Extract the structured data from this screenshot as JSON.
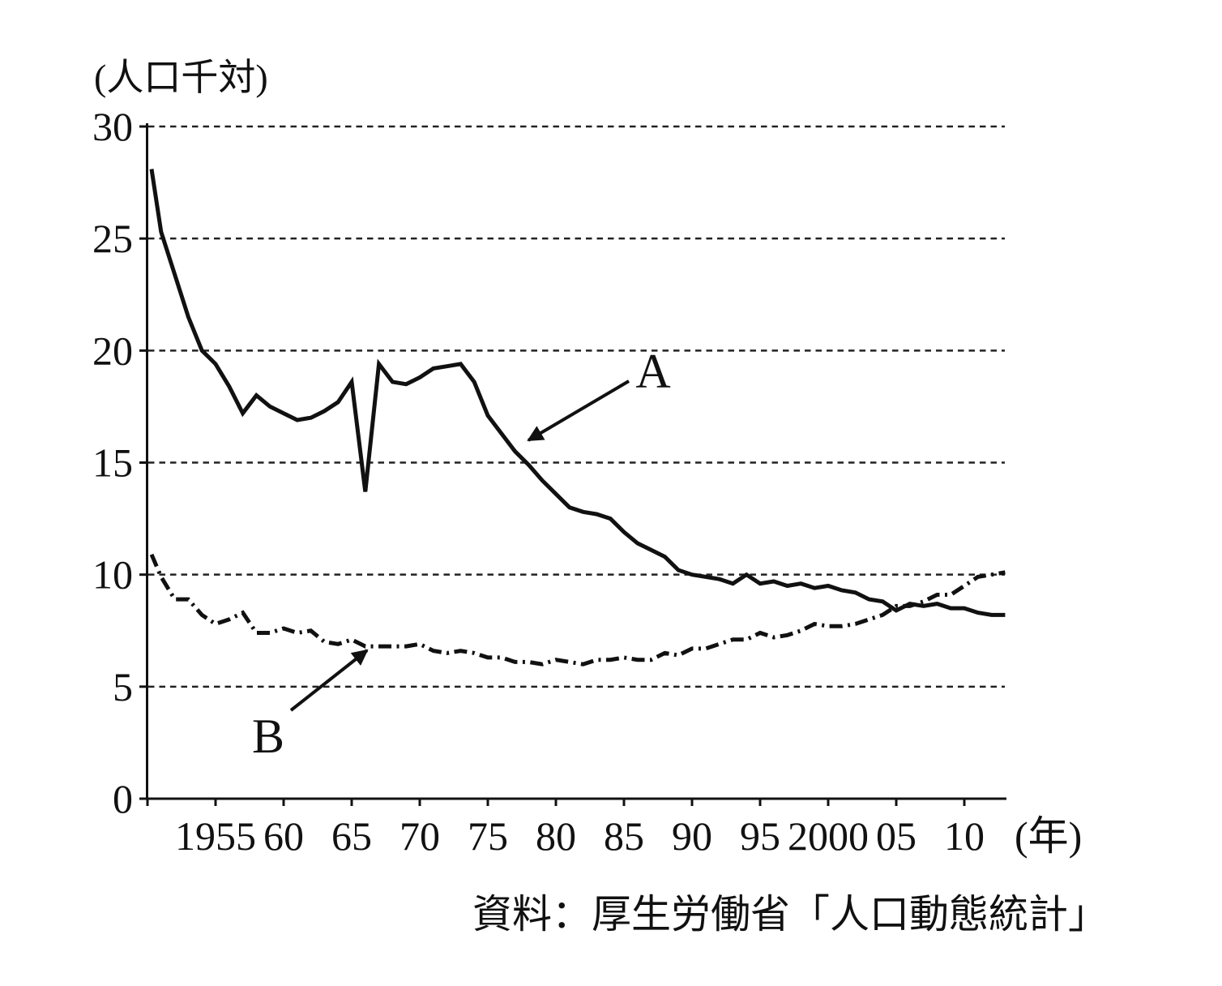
{
  "unit_label": "(人口千対)",
  "source": "資料：厚生労働省「人口動態統計」",
  "colors": {
    "line": "#111111",
    "grid": "#222222",
    "background": "#ffffff"
  },
  "y_axis": {
    "ticks": [
      0,
      5,
      10,
      15,
      20,
      25,
      30
    ]
  },
  "x_axis": {
    "suffix": "(年)",
    "ticks": [
      {
        "year": 1950,
        "label": ""
      },
      {
        "year": 1955,
        "label": "1955"
      },
      {
        "year": 1960,
        "label": "60"
      },
      {
        "year": 1965,
        "label": "65"
      },
      {
        "year": 1970,
        "label": "70"
      },
      {
        "year": 1975,
        "label": "75"
      },
      {
        "year": 1980,
        "label": "80"
      },
      {
        "year": 1985,
        "label": "85"
      },
      {
        "year": 1990,
        "label": "90"
      },
      {
        "year": 1995,
        "label": "95"
      },
      {
        "year": 2000,
        "label": "2000"
      },
      {
        "year": 2005,
        "label": "05"
      },
      {
        "year": 2010,
        "label": "10"
      }
    ]
  },
  "chart_data": {
    "type": "line",
    "title": "",
    "ylabel": "(人口千対)",
    "xlabel": "(年)",
    "ylim": [
      0,
      30
    ],
    "xlim": [
      1950,
      2013
    ],
    "grid": "horizontal-dashed",
    "legend": "arrow-annotations",
    "source": "資料：厚生労働省「人口動態統計」",
    "x": [
      1950,
      1951,
      1952,
      1953,
      1954,
      1955,
      1956,
      1957,
      1958,
      1959,
      1960,
      1961,
      1962,
      1963,
      1964,
      1965,
      1966,
      1967,
      1968,
      1969,
      1970,
      1971,
      1972,
      1973,
      1974,
      1975,
      1976,
      1977,
      1978,
      1979,
      1980,
      1981,
      1982,
      1983,
      1984,
      1985,
      1986,
      1987,
      1988,
      1989,
      1990,
      1991,
      1992,
      1993,
      1994,
      1995,
      1996,
      1997,
      1998,
      1999,
      2000,
      2001,
      2002,
      2003,
      2004,
      2005,
      2006,
      2007,
      2008,
      2009,
      2010,
      2011,
      2012,
      2013
    ],
    "series": [
      {
        "name": "A",
        "label": "A",
        "line_style": "solid",
        "values": [
          28.1,
          25.3,
          23.4,
          21.5,
          20.0,
          19.4,
          18.4,
          17.2,
          18.0,
          17.5,
          17.2,
          16.9,
          17.0,
          17.3,
          17.7,
          18.6,
          13.7,
          19.4,
          18.6,
          18.5,
          18.8,
          19.2,
          19.3,
          19.4,
          18.6,
          17.1,
          16.3,
          15.5,
          14.9,
          14.2,
          13.6,
          13.0,
          12.8,
          12.7,
          12.5,
          11.9,
          11.4,
          11.1,
          10.8,
          10.2,
          10.0,
          9.9,
          9.8,
          9.6,
          10.0,
          9.6,
          9.7,
          9.5,
          9.6,
          9.4,
          9.5,
          9.3,
          9.2,
          8.9,
          8.8,
          8.4,
          8.7,
          8.6,
          8.7,
          8.5,
          8.5,
          8.3,
          8.2,
          8.2
        ]
      },
      {
        "name": "B",
        "label": "B",
        "line_style": "dash-dot",
        "values": [
          10.9,
          9.9,
          8.9,
          8.9,
          8.2,
          7.8,
          8.0,
          8.3,
          7.4,
          7.4,
          7.6,
          7.4,
          7.5,
          7.0,
          6.9,
          7.1,
          6.8,
          6.8,
          6.8,
          6.8,
          6.9,
          6.6,
          6.5,
          6.6,
          6.5,
          6.3,
          6.3,
          6.1,
          6.1,
          6.0,
          6.2,
          6.1,
          6.0,
          6.2,
          6.2,
          6.3,
          6.2,
          6.2,
          6.5,
          6.4,
          6.7,
          6.7,
          6.9,
          7.1,
          7.1,
          7.4,
          7.2,
          7.3,
          7.5,
          7.8,
          7.7,
          7.7,
          7.8,
          8.0,
          8.2,
          8.6,
          8.6,
          8.8,
          9.1,
          9.1,
          9.5,
          9.9,
          10.0,
          10.1
        ]
      }
    ]
  }
}
